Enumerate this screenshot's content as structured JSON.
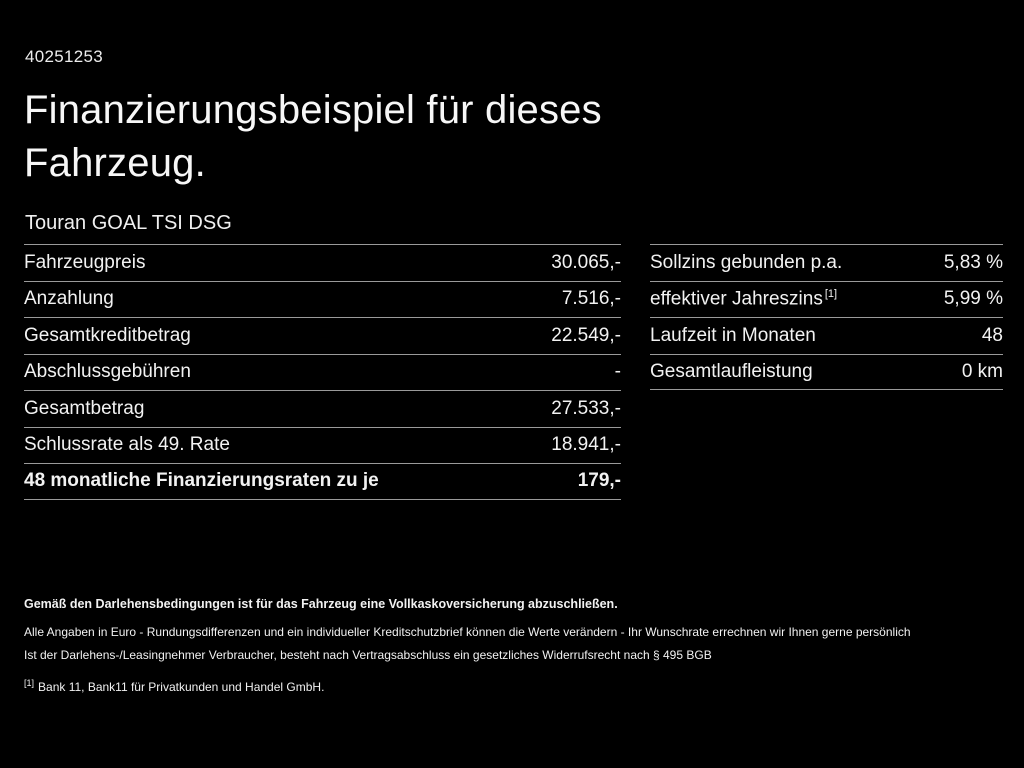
{
  "page": {
    "id_number": "40251253",
    "title_line1": "Finanzierungsbeispiel für dieses",
    "title_line2": "Fahrzeug.",
    "vehicle_model": "Touran GOAL TSI DSG",
    "background_color": "#000000",
    "text_color": "#f5f5f5",
    "divider_color": "#9a9a9a"
  },
  "left_table": {
    "rows": [
      {
        "label": "Fahrzeugpreis",
        "value": "30.065,-"
      },
      {
        "label": "Anzahlung",
        "value": "7.516,-"
      },
      {
        "label": "Gesamtkreditbetrag",
        "value": "22.549,-"
      },
      {
        "label": "Abschlussgebühren",
        "value": "-"
      },
      {
        "label": "Gesamtbetrag",
        "value": "27.533,-"
      },
      {
        "label": "Schlussrate als 49. Rate",
        "value": "18.941,-"
      },
      {
        "label": "48 monatliche Finanzierungsraten zu je",
        "value": "179,-"
      }
    ]
  },
  "right_table": {
    "rows": [
      {
        "label": "Sollzins gebunden p.a.",
        "sup": "",
        "value": "5,83 %"
      },
      {
        "label": "effektiver Jahreszins",
        "sup": "[1]",
        "value": "5,99 %"
      },
      {
        "label": "Laufzeit in Monaten",
        "sup": "",
        "value": "48"
      },
      {
        "label": "Gesamtlaufleistung",
        "sup": "",
        "value": "0 km"
      }
    ]
  },
  "footer": {
    "line1": "Gemäß den Darlehensbedingungen ist für das Fahrzeug eine Vollkaskoversicherung abzuschließen.",
    "line2": "Alle Angaben in Euro - Rundungsdifferenzen und ein individueller Kreditschutzbrief können die Werte verändern - Ihr Wunschrate errechnen wir Ihnen gerne persönlich",
    "line3": "Ist der Darlehens-/Leasingnehmer Verbraucher, besteht nach Vertragsabschluss ein gesetzliches Widerrufsrecht nach § 495 BGB",
    "footnote_marker": "[1]",
    "footnote_text": "Bank 11, Bank11 für Privatkunden und Handel GmbH."
  }
}
